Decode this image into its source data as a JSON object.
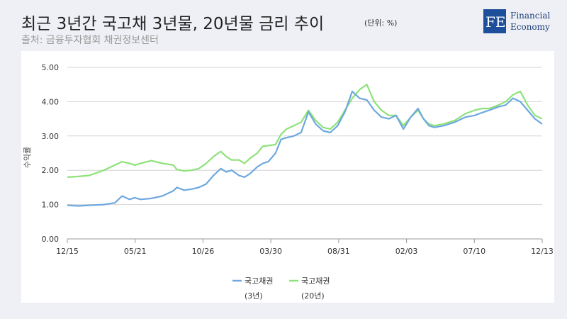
{
  "header": {
    "title": "최근 3년간 국고채 3년물, 20년물 금리 추이",
    "unit": "(단위: %)",
    "source": "출처: 금융투자협회 채권정보센터"
  },
  "logo": {
    "mark": "FE",
    "line1": "Financial",
    "line2": "Economy",
    "color": "#1d4f9a"
  },
  "chart_data": {
    "type": "line",
    "title": "",
    "xlabel": "",
    "ylabel": "수익률",
    "ylim": [
      0,
      5
    ],
    "yticks": [
      "0.00",
      "1.00",
      "2.00",
      "3.00",
      "4.00",
      "5.00"
    ],
    "ytick_values": [
      0,
      1,
      2,
      3,
      4,
      5
    ],
    "xticks": [
      "12/15",
      "05/21",
      "10/26",
      "03/30",
      "08/31",
      "02/03",
      "07/10",
      "12/13"
    ],
    "grid": true,
    "legend_position": "bottom",
    "series": [
      {
        "name": "국고채권 (3년)",
        "legend_line1": "국고채권",
        "legend_line2": "(3년)",
        "color": "#6ea8e0",
        "x": [
          0,
          0.3,
          0.6,
          1,
          1.3,
          1.5,
          1.7,
          1.85,
          2,
          2.3,
          2.6,
          2.9,
          3,
          3.2,
          3.4,
          3.6,
          3.8,
          4,
          4.2,
          4.35,
          4.5,
          4.7,
          4.85,
          5,
          5.2,
          5.35,
          5.5,
          5.7,
          5.85,
          6,
          6.2,
          6.4,
          6.6,
          6.8,
          7,
          7.2,
          7.4,
          7.6,
          7.8,
          8,
          8.2,
          8.4,
          8.6,
          8.8,
          9,
          9.2,
          9.4,
          9.6,
          9.75,
          9.9,
          10.05,
          10.3,
          10.6,
          10.9,
          11.15,
          11.35,
          11.55,
          11.8,
          12,
          12.2,
          12.4,
          12.6,
          12.8,
          13
        ],
        "values": [
          0.98,
          0.96,
          0.98,
          1.0,
          1.05,
          1.25,
          1.15,
          1.2,
          1.15,
          1.18,
          1.25,
          1.4,
          1.5,
          1.42,
          1.45,
          1.5,
          1.6,
          1.85,
          2.05,
          1.95,
          2.0,
          1.85,
          1.8,
          1.9,
          2.1,
          2.2,
          2.25,
          2.5,
          2.9,
          2.95,
          3.0,
          3.1,
          3.7,
          3.35,
          3.15,
          3.1,
          3.3,
          3.7,
          4.3,
          4.1,
          4.05,
          3.75,
          3.55,
          3.5,
          3.6,
          3.2,
          3.55,
          3.8,
          3.5,
          3.3,
          3.25,
          3.3,
          3.4,
          3.55,
          3.6,
          3.68,
          3.75,
          3.85,
          3.9,
          4.1,
          4.0,
          3.75,
          3.5,
          3.35
        ]
      },
      {
        "name": "국고채권 (20년)",
        "legend_line1": "국고채권",
        "legend_line2": "(20년)",
        "color": "#8ee27a",
        "x": [
          0,
          0.3,
          0.6,
          1,
          1.3,
          1.5,
          1.7,
          1.85,
          2,
          2.3,
          2.6,
          2.9,
          3,
          3.2,
          3.4,
          3.6,
          3.8,
          4,
          4.2,
          4.35,
          4.5,
          4.7,
          4.85,
          5,
          5.2,
          5.35,
          5.5,
          5.7,
          5.85,
          6,
          6.2,
          6.4,
          6.6,
          6.8,
          7,
          7.2,
          7.4,
          7.6,
          7.8,
          8,
          8.2,
          8.4,
          8.6,
          8.8,
          9,
          9.2,
          9.4,
          9.6,
          9.75,
          9.9,
          10.05,
          10.3,
          10.6,
          10.9,
          11.15,
          11.35,
          11.55,
          11.8,
          12,
          12.2,
          12.4,
          12.6,
          12.8,
          13
        ],
        "values": [
          1.8,
          1.82,
          1.85,
          2.0,
          2.15,
          2.25,
          2.2,
          2.15,
          2.2,
          2.28,
          2.2,
          2.15,
          2.02,
          1.98,
          2.0,
          2.05,
          2.2,
          2.4,
          2.55,
          2.4,
          2.3,
          2.3,
          2.2,
          2.35,
          2.5,
          2.7,
          2.72,
          2.75,
          3.05,
          3.2,
          3.3,
          3.4,
          3.75,
          3.45,
          3.25,
          3.2,
          3.4,
          3.75,
          4.1,
          4.35,
          4.5,
          4.0,
          3.75,
          3.6,
          3.6,
          3.3,
          3.55,
          3.75,
          3.5,
          3.35,
          3.3,
          3.35,
          3.45,
          3.65,
          3.75,
          3.8,
          3.8,
          3.9,
          4.0,
          4.2,
          4.3,
          3.9,
          3.6,
          3.5
        ]
      }
    ]
  }
}
